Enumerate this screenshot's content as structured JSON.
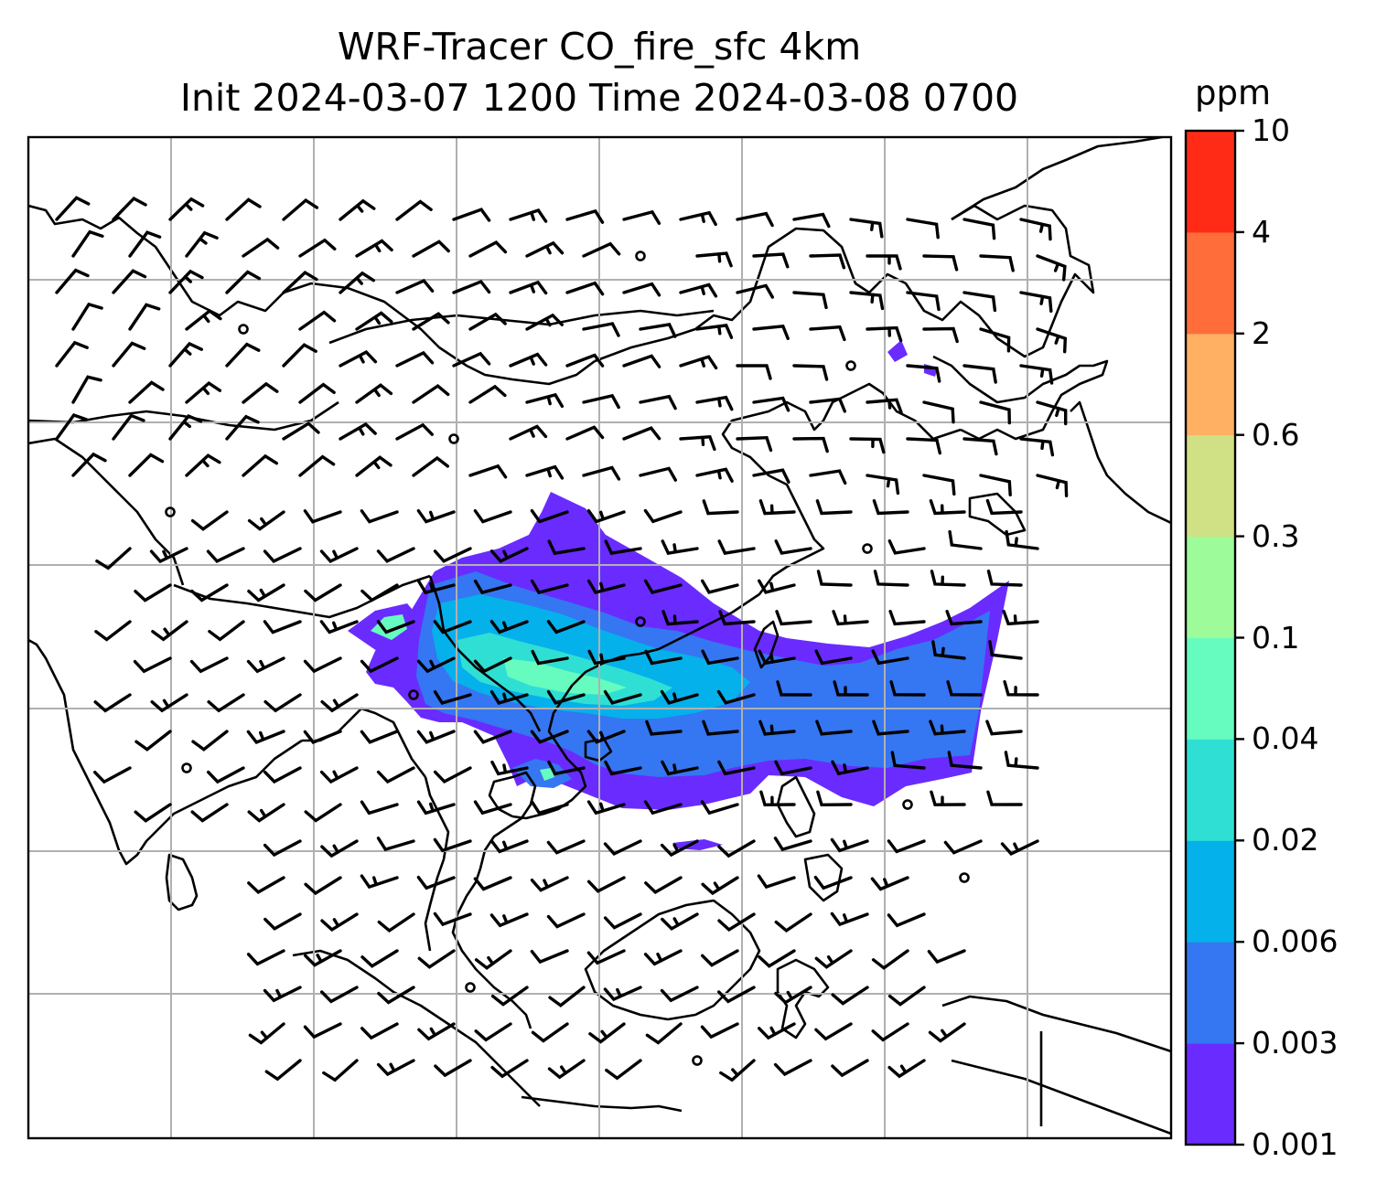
{
  "title": {
    "line1": "WRF-Tracer CO_fire_sfc 4km",
    "line2": "Init 2024-03-07 1200 Time 2024-03-08 0700"
  },
  "colorbar": {
    "unit": "ppm",
    "levels": [
      "0.001",
      "0.003",
      "0.006",
      "0.02",
      "0.04",
      "0.1",
      "0.3",
      "0.6",
      "2",
      "4",
      "10"
    ],
    "colors": [
      "#6a2bff",
      "#3576f2",
      "#05b1ea",
      "#2fdfd4",
      "#66fbbf",
      "#9dfb9a",
      "#d0e084",
      "#ffb063",
      "#ff6d3b",
      "#ff2b17"
    ]
  },
  "map": {
    "gridlines": true,
    "coastline_color": "#000000",
    "grid_color": "#b0b0b0",
    "wind_barb_color": "#000000",
    "calm_marker": "circle"
  }
}
